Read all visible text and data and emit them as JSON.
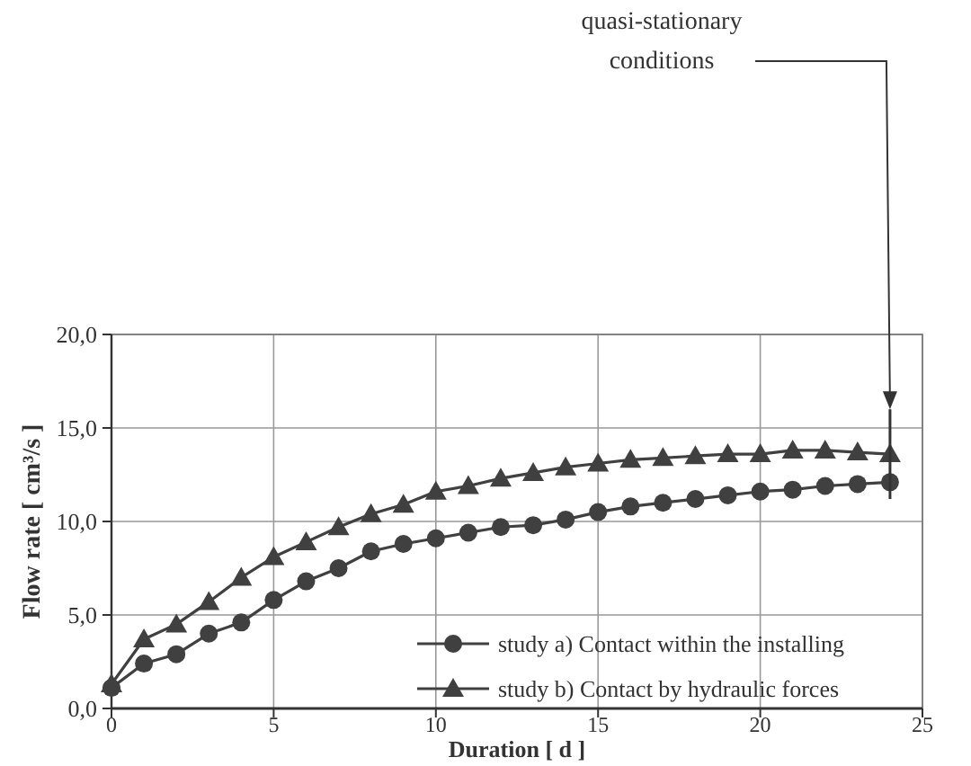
{
  "chart_data": {
    "type": "line",
    "xlabel": "Duration [ d ]",
    "ylabel": "Flow rate  [ cm³/s ]",
    "x": [
      0,
      1,
      2,
      3,
      4,
      5,
      6,
      7,
      8,
      9,
      10,
      11,
      12,
      13,
      14,
      15,
      16,
      17,
      18,
      19,
      20,
      21,
      22,
      23,
      24
    ],
    "series": [
      {
        "name": "study a) Contact within the installing",
        "color": "#404040",
        "marker": "circle",
        "values": [
          1.1,
          2.4,
          2.9,
          4.0,
          4.6,
          5.8,
          6.8,
          7.5,
          8.4,
          8.8,
          9.1,
          9.4,
          9.7,
          9.8,
          10.1,
          10.5,
          10.8,
          11.0,
          11.2,
          11.4,
          11.6,
          11.7,
          11.9,
          12.0,
          12.1
        ]
      },
      {
        "name": "study b) Contact by hydraulic forces",
        "color": "#404040",
        "marker": "triangle",
        "values": [
          1.3,
          3.7,
          4.5,
          5.7,
          7.0,
          8.1,
          8.9,
          9.7,
          10.4,
          10.9,
          11.6,
          11.9,
          12.3,
          12.6,
          12.9,
          13.1,
          13.3,
          13.4,
          13.5,
          13.6,
          13.6,
          13.8,
          13.8,
          13.7,
          13.6
        ]
      }
    ],
    "xlim": [
      0,
      25
    ],
    "xticks": [
      0,
      5,
      10,
      15,
      20,
      25
    ],
    "ylim": [
      0,
      20
    ],
    "yticks": [
      {
        "value": 0,
        "label": "0,0"
      },
      {
        "value": 5,
        "label": "5,0"
      },
      {
        "value": 10,
        "label": "10,0"
      },
      {
        "value": 15,
        "label": "15,0"
      },
      {
        "value": 20,
        "label": "20,0"
      }
    ],
    "grid": true,
    "legend": "bottom right",
    "line_style": "solid",
    "annotations": [
      "quasi-stationary conditions"
    ]
  }
}
